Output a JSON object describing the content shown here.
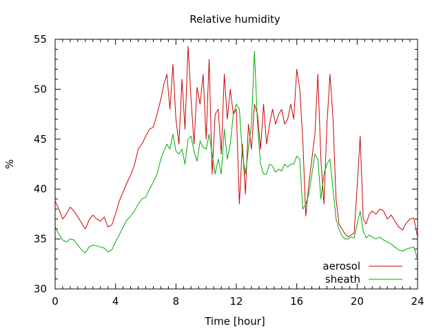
{
  "chart_data": {
    "type": "line",
    "title": "Relative humidity",
    "xlabel": "Time [hour]",
    "ylabel": "%",
    "xlim": [
      0,
      24
    ],
    "ylim": [
      30,
      55
    ],
    "x_ticks": [
      0,
      4,
      8,
      12,
      16,
      20,
      24
    ],
    "y_ticks": [
      30,
      35,
      40,
      45,
      50,
      55
    ],
    "grid": false,
    "legend_position": "bottom-right",
    "series": [
      {
        "name": "aerosol",
        "color": "#cc0000",
        "x": [
          0,
          0.25,
          0.5,
          0.75,
          1,
          1.25,
          1.5,
          1.75,
          2,
          2.25,
          2.5,
          2.75,
          3,
          3.25,
          3.5,
          3.75,
          4,
          4.25,
          4.5,
          4.75,
          5,
          5.25,
          5.5,
          5.75,
          6,
          6.25,
          6.5,
          6.75,
          7,
          7.2,
          7.4,
          7.6,
          7.8,
          8,
          8.2,
          8.4,
          8.6,
          8.8,
          9,
          9.2,
          9.4,
          9.6,
          9.8,
          10,
          10.2,
          10.4,
          10.6,
          10.8,
          11,
          11.2,
          11.4,
          11.6,
          11.8,
          12,
          12.2,
          12.4,
          12.6,
          12.8,
          13,
          13.2,
          13.4,
          13.6,
          13.8,
          14,
          14.2,
          14.4,
          14.6,
          14.8,
          15,
          15.2,
          15.4,
          15.6,
          15.8,
          16,
          16.2,
          16.4,
          16.6,
          16.8,
          17,
          17.2,
          17.4,
          17.6,
          17.8,
          18,
          18.2,
          18.4,
          18.6,
          18.8,
          19,
          19.2,
          19.4,
          19.6,
          19.8,
          20,
          20.2,
          20.4,
          20.6,
          20.8,
          21,
          21.25,
          21.5,
          21.75,
          22,
          22.25,
          22.5,
          22.75,
          23,
          23.25,
          23.5,
          23.75,
          24
        ],
        "values": [
          38.8,
          38,
          37,
          37.5,
          38.2,
          37.8,
          37.2,
          36.6,
          36,
          36.9,
          37.4,
          37,
          36.8,
          37.2,
          36.2,
          36.4,
          37.5,
          38.8,
          39.7,
          40.6,
          41.4,
          42.4,
          44,
          44.5,
          45.3,
          46,
          46.2,
          47.5,
          49,
          50.5,
          51.5,
          48,
          52.5,
          47,
          44.5,
          51,
          46,
          54.3,
          49,
          44.5,
          50.2,
          48.5,
          51.5,
          45,
          53,
          41.5,
          47.5,
          48,
          43.5,
          51.5,
          47,
          50,
          47.5,
          48,
          38.5,
          44.5,
          39.5,
          46.5,
          44,
          48.5,
          47.5,
          44,
          48.5,
          44.5,
          46.5,
          48,
          46.5,
          47.5,
          48,
          46.5,
          47,
          48.5,
          47,
          52,
          50,
          45,
          37.3,
          40.5,
          43,
          45.5,
          51.5,
          43,
          38.5,
          46.5,
          51.5,
          47,
          39,
          36.5,
          36,
          35.5,
          35.2,
          35.4,
          35.6,
          40.2,
          45.3,
          37,
          36.5,
          37.5,
          37.8,
          37.5,
          38,
          37.8,
          37,
          37.4,
          36.8,
          36.2,
          35.9,
          36.6,
          37,
          37.1,
          35.2
        ]
      },
      {
        "name": "sheath",
        "color": "#00aa00",
        "x": [
          0,
          0.25,
          0.5,
          0.75,
          1,
          1.25,
          1.5,
          1.75,
          2,
          2.25,
          2.5,
          2.75,
          3,
          3.25,
          3.5,
          3.75,
          4,
          4.25,
          4.5,
          4.75,
          5,
          5.25,
          5.5,
          5.75,
          6,
          6.25,
          6.5,
          6.75,
          7,
          7.2,
          7.4,
          7.6,
          7.8,
          8,
          8.2,
          8.4,
          8.6,
          8.8,
          9,
          9.2,
          9.4,
          9.6,
          9.8,
          10,
          10.2,
          10.4,
          10.6,
          10.8,
          11,
          11.2,
          11.4,
          11.6,
          11.8,
          12,
          12.2,
          12.4,
          12.6,
          12.8,
          13,
          13.2,
          13.4,
          13.6,
          13.8,
          14,
          14.2,
          14.4,
          14.6,
          14.8,
          15,
          15.2,
          15.4,
          15.6,
          15.8,
          16,
          16.2,
          16.4,
          16.6,
          16.8,
          17,
          17.2,
          17.4,
          17.6,
          17.8,
          18,
          18.2,
          18.4,
          18.6,
          18.8,
          19,
          19.2,
          19.4,
          19.6,
          19.8,
          20,
          20.2,
          20.4,
          20.6,
          20.8,
          21,
          21.25,
          21.5,
          21.75,
          22,
          22.25,
          22.5,
          22.75,
          23,
          23.25,
          23.5,
          23.75,
          24
        ],
        "values": [
          36.2,
          35.5,
          34.9,
          34.7,
          35,
          34.9,
          34.4,
          33.9,
          33.6,
          34.2,
          34.4,
          34.3,
          34.2,
          34.1,
          33.7,
          33.9,
          34.7,
          35.4,
          36.2,
          36.9,
          37.3,
          37.8,
          38.5,
          39,
          39.2,
          40,
          40.7,
          41.5,
          43,
          43.8,
          44.5,
          44,
          45.5,
          43.8,
          43.5,
          44,
          42.5,
          45,
          45.3,
          43.8,
          42.8,
          44.8,
          44.2,
          44,
          45.5,
          43.5,
          41.5,
          43,
          41.5,
          46,
          43,
          44.5,
          47.5,
          48.5,
          48,
          43.5,
          41.5,
          44,
          46.5,
          53.8,
          46.5,
          42.5,
          41.5,
          41.5,
          42.5,
          42.3,
          41.7,
          42,
          41.8,
          42.5,
          42.2,
          42.5,
          42.5,
          43.3,
          43,
          38,
          38.5,
          39.5,
          41.5,
          43.5,
          43,
          39,
          41.5,
          42.5,
          43,
          40,
          37,
          36,
          35.3,
          35,
          35,
          35.2,
          35.1,
          36.5,
          37.8,
          35.8,
          35.1,
          35.4,
          35.2,
          35,
          35.2,
          34.9,
          34.7,
          34.5,
          34.2,
          33.9,
          33.8,
          34,
          34.1,
          34.2,
          33
        ]
      }
    ]
  }
}
